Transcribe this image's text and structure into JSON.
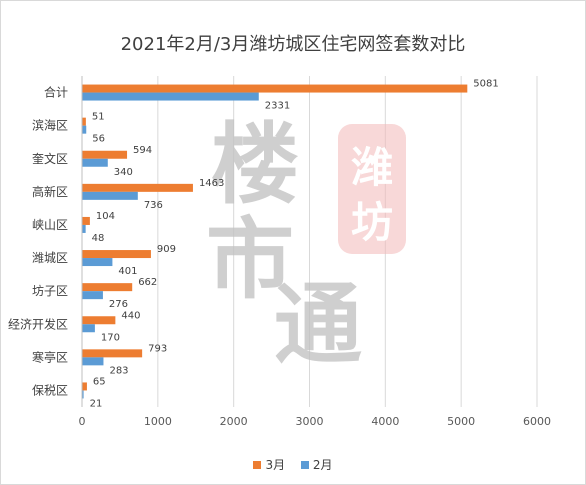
{
  "chart_data": {
    "type": "bar",
    "orientation": "horizontal",
    "title": "2021年2月/3月潍坊城区住宅网签套数对比",
    "categories": [
      "合计",
      "滨海区",
      "奎文区",
      "高新区",
      "峡山区",
      "潍城区",
      "坊子区",
      "经济开发区",
      "寒亭区",
      "保税区"
    ],
    "series": [
      {
        "name": "3月",
        "color": "#ed7d31",
        "values": [
          5081,
          51,
          594,
          1463,
          104,
          909,
          662,
          440,
          793,
          65
        ]
      },
      {
        "name": "2月",
        "color": "#5b9bd5",
        "values": [
          2331,
          56,
          340,
          736,
          48,
          401,
          276,
          170,
          283,
          21
        ]
      }
    ],
    "xlim": [
      0,
      6000
    ],
    "xticks": [
      0,
      1000,
      2000,
      3000,
      4000,
      5000,
      6000
    ],
    "grid": true,
    "legend_position": "bottom"
  },
  "watermark": {
    "text": "楼市通",
    "stamp_text": "潍坊",
    "color": "#bfbfbf",
    "stamp_color": "#f2b8b8"
  }
}
